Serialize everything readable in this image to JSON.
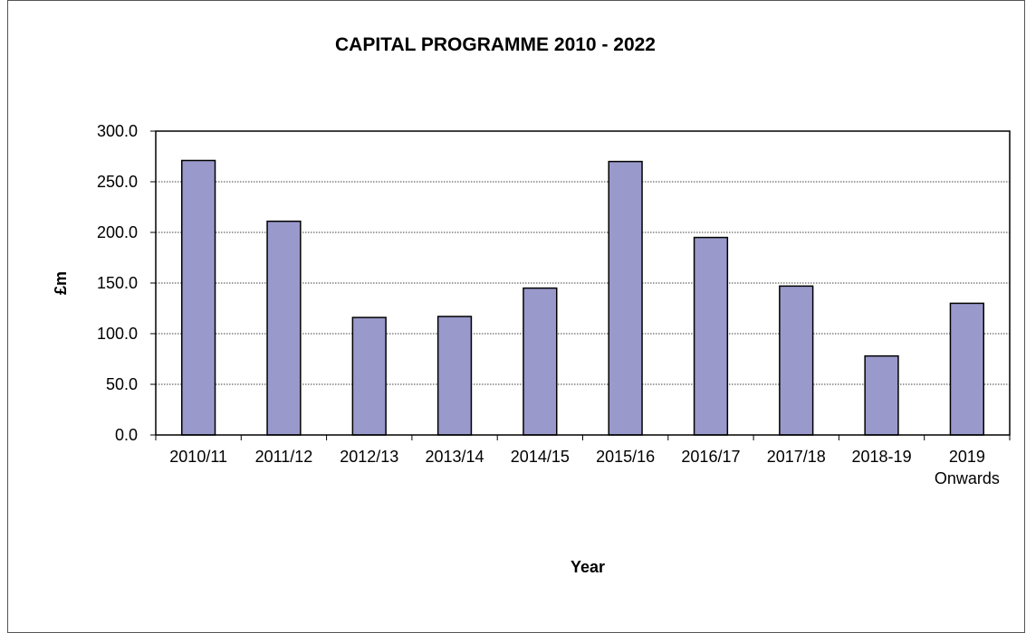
{
  "chart_data": {
    "type": "bar",
    "title": "CAPITAL PROGRAMME  2010 - 2022",
    "xlabel": "Year",
    "ylabel": "£m",
    "categories": [
      "2010/11",
      "2011/12",
      "2012/13",
      "2013/14",
      "2014/15",
      "2015/16",
      "2016/17",
      "2017/18",
      "2018-19",
      "2019 Onwards"
    ],
    "values": [
      271,
      211,
      116,
      117,
      145,
      270,
      195,
      147,
      78,
      130
    ],
    "ylim": [
      0,
      300
    ],
    "yticks": [
      "0.0",
      "50.0",
      "100.0",
      "150.0",
      "200.0",
      "250.0",
      "300.0"
    ],
    "grid": true,
    "legend": "none",
    "bar_color": "#9999cc"
  }
}
